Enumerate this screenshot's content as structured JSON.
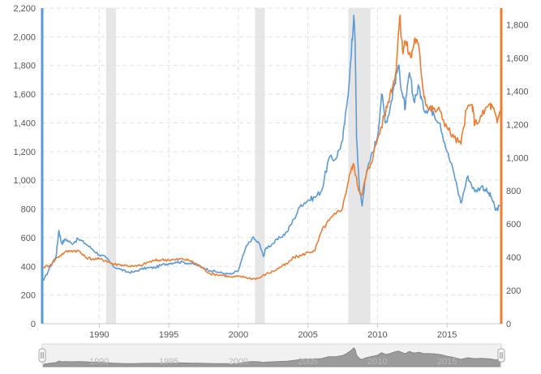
{
  "chart_data": {
    "type": "line",
    "title": "",
    "xlabel": "",
    "ylabel_left": "",
    "ylabel_right": "",
    "grid": true,
    "legend": "none",
    "x_axis": {
      "range": [
        1985.9,
        2018.9
      ],
      "tick_labels": [
        "1990",
        "1995",
        "2000",
        "2005",
        "2010",
        "2015"
      ]
    },
    "left_axis": {
      "range": [
        0,
        2200
      ],
      "tick_labels": [
        "0",
        "200",
        "400",
        "600",
        "800",
        "1,000",
        "1,200",
        "1,400",
        "1,600",
        "1,800",
        "2,000",
        "2,200"
      ],
      "color": "#5b9bd5"
    },
    "right_axis": {
      "range": [
        0,
        1900
      ],
      "tick_labels": [
        "0",
        "200",
        "400",
        "600",
        "800",
        "1,000",
        "1,200",
        "1,400",
        "1,600",
        "1,800"
      ],
      "color": "#ed7d31"
    },
    "recessions": [
      [
        1990.5,
        1991.2
      ],
      [
        2001.2,
        2001.9
      ],
      [
        2007.9,
        2009.5
      ]
    ],
    "series": [
      {
        "axis": "left",
        "color": "#5b9bd5",
        "points": [
          [
            1986.0,
            300
          ],
          [
            1986.5,
            400
          ],
          [
            1986.9,
            470
          ],
          [
            1987.1,
            650
          ],
          [
            1987.3,
            560
          ],
          [
            1987.6,
            590
          ],
          [
            1988.0,
            560
          ],
          [
            1988.5,
            590
          ],
          [
            1989.0,
            560
          ],
          [
            1989.5,
            520
          ],
          [
            1990.0,
            480
          ],
          [
            1990.5,
            460
          ],
          [
            1991.0,
            400
          ],
          [
            1991.5,
            380
          ],
          [
            1992.0,
            360
          ],
          [
            1992.5,
            360
          ],
          [
            1993.0,
            380
          ],
          [
            1993.5,
            390
          ],
          [
            1994.0,
            390
          ],
          [
            1994.5,
            410
          ],
          [
            1995.0,
            420
          ],
          [
            1995.5,
            430
          ],
          [
            1996.0,
            430
          ],
          [
            1996.5,
            420
          ],
          [
            1997.0,
            410
          ],
          [
            1997.5,
            390
          ],
          [
            1998.0,
            370
          ],
          [
            1998.5,
            360
          ],
          [
            1999.0,
            350
          ],
          [
            1999.5,
            345
          ],
          [
            2000.0,
            370
          ],
          [
            2000.5,
            520
          ],
          [
            2001.0,
            600
          ],
          [
            2001.5,
            560
          ],
          [
            2001.8,
            470
          ],
          [
            2002.0,
            530
          ],
          [
            2002.5,
            560
          ],
          [
            2003.0,
            600
          ],
          [
            2003.5,
            640
          ],
          [
            2004.0,
            730
          ],
          [
            2004.5,
            830
          ],
          [
            2005.0,
            860
          ],
          [
            2005.5,
            880
          ],
          [
            2006.0,
            930
          ],
          [
            2006.5,
            1150
          ],
          [
            2007.0,
            1150
          ],
          [
            2007.5,
            1280
          ],
          [
            2007.8,
            1520
          ],
          [
            2008.1,
            1850
          ],
          [
            2008.3,
            2150
          ],
          [
            2008.4,
            1950
          ],
          [
            2008.5,
            1300
          ],
          [
            2008.7,
            950
          ],
          [
            2008.9,
            820
          ],
          [
            2009.1,
            1000
          ],
          [
            2009.5,
            1150
          ],
          [
            2010.0,
            1300
          ],
          [
            2010.3,
            1600
          ],
          [
            2010.6,
            1400
          ],
          [
            2010.9,
            1500
          ],
          [
            2011.2,
            1660
          ],
          [
            2011.5,
            1800
          ],
          [
            2011.8,
            1600
          ],
          [
            2012.0,
            1500
          ],
          [
            2012.3,
            1750
          ],
          [
            2012.6,
            1560
          ],
          [
            2013.0,
            1650
          ],
          [
            2013.3,
            1500
          ],
          [
            2013.7,
            1500
          ],
          [
            2014.0,
            1480
          ],
          [
            2014.5,
            1400
          ],
          [
            2015.0,
            1200
          ],
          [
            2015.5,
            1050
          ],
          [
            2016.0,
            840
          ],
          [
            2016.5,
            1030
          ],
          [
            2017.0,
            920
          ],
          [
            2017.5,
            960
          ],
          [
            2017.9,
            920
          ],
          [
            2018.2,
            880
          ],
          [
            2018.5,
            790
          ],
          [
            2018.8,
            820
          ]
        ]
      },
      {
        "axis": "right",
        "color": "#ed7d31",
        "points": [
          [
            1986.0,
            340
          ],
          [
            1986.5,
            355
          ],
          [
            1987.0,
            400
          ],
          [
            1987.5,
            430
          ],
          [
            1988.0,
            440
          ],
          [
            1988.5,
            440
          ],
          [
            1989.0,
            400
          ],
          [
            1989.5,
            390
          ],
          [
            1990.0,
            390
          ],
          [
            1990.5,
            380
          ],
          [
            1991.0,
            360
          ],
          [
            1991.5,
            355
          ],
          [
            1992.0,
            350
          ],
          [
            1992.5,
            345
          ],
          [
            1993.0,
            350
          ],
          [
            1993.5,
            370
          ],
          [
            1994.0,
            380
          ],
          [
            1994.5,
            385
          ],
          [
            1995.0,
            385
          ],
          [
            1995.5,
            385
          ],
          [
            1996.0,
            390
          ],
          [
            1996.5,
            380
          ],
          [
            1997.0,
            360
          ],
          [
            1997.5,
            330
          ],
          [
            1998.0,
            300
          ],
          [
            1998.5,
            295
          ],
          [
            1999.0,
            290
          ],
          [
            1999.5,
            280
          ],
          [
            2000.0,
            285
          ],
          [
            2000.5,
            280
          ],
          [
            2001.0,
            270
          ],
          [
            2001.5,
            275
          ],
          [
            2002.0,
            300
          ],
          [
            2002.5,
            315
          ],
          [
            2003.0,
            340
          ],
          [
            2003.5,
            360
          ],
          [
            2004.0,
            400
          ],
          [
            2004.5,
            410
          ],
          [
            2005.0,
            430
          ],
          [
            2005.5,
            440
          ],
          [
            2006.0,
            560
          ],
          [
            2006.5,
            620
          ],
          [
            2007.0,
            660
          ],
          [
            2007.5,
            700
          ],
          [
            2008.0,
            900
          ],
          [
            2008.3,
            960
          ],
          [
            2008.6,
            820
          ],
          [
            2008.9,
            780
          ],
          [
            2009.2,
            900
          ],
          [
            2009.5,
            960
          ],
          [
            2010.0,
            1110
          ],
          [
            2010.5,
            1250
          ],
          [
            2010.9,
            1380
          ],
          [
            2011.3,
            1500
          ],
          [
            2011.6,
            1850
          ],
          [
            2011.8,
            1650
          ],
          [
            2012.0,
            1700
          ],
          [
            2012.4,
            1600
          ],
          [
            2012.7,
            1720
          ],
          [
            2013.0,
            1650
          ],
          [
            2013.3,
            1400
          ],
          [
            2013.6,
            1300
          ],
          [
            2014.0,
            1290
          ],
          [
            2014.5,
            1280
          ],
          [
            2015.0,
            1180
          ],
          [
            2015.5,
            1120
          ],
          [
            2016.0,
            1080
          ],
          [
            2016.4,
            1290
          ],
          [
            2016.8,
            1320
          ],
          [
            2017.0,
            1200
          ],
          [
            2017.5,
            1250
          ],
          [
            2018.0,
            1320
          ],
          [
            2018.3,
            1300
          ],
          [
            2018.6,
            1210
          ],
          [
            2018.8,
            1280
          ]
        ]
      }
    ],
    "navigator": {
      "tick_labels": [
        "1990",
        "1995",
        "2000",
        "2005",
        "2010",
        "2015"
      ]
    }
  }
}
